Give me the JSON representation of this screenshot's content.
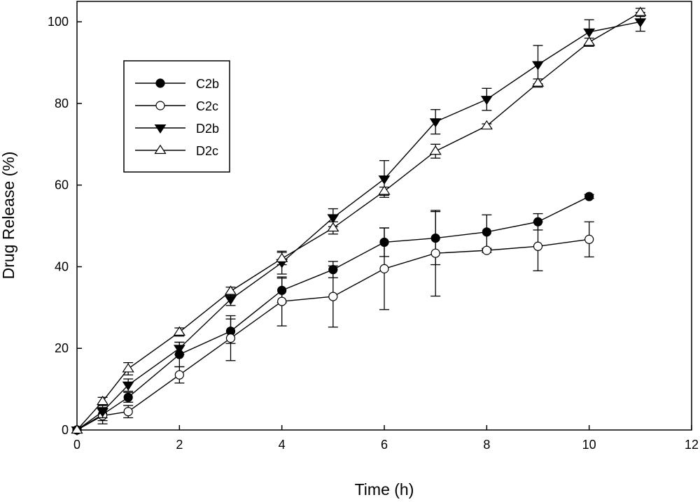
{
  "chart_data": {
    "type": "line",
    "xlabel": "Time (h)",
    "ylabel": "Drug Release (%)",
    "xlim": [
      0,
      12
    ],
    "ylim": [
      0,
      105
    ],
    "x_ticks": [
      0,
      2,
      4,
      6,
      8,
      10,
      12
    ],
    "y_ticks": [
      0,
      20,
      40,
      60,
      80,
      100
    ],
    "grid": false,
    "legend_position": "top-left",
    "series": [
      {
        "name": "C2b",
        "marker": "circle-filled",
        "color": "#000000",
        "x": [
          0,
          0.5,
          1,
          2,
          3,
          4,
          5,
          6,
          7,
          8,
          9,
          10
        ],
        "y": [
          0,
          3.8,
          8.0,
          18.5,
          24.2,
          34.2,
          39.3,
          46.0,
          47.0,
          48.5,
          51.0,
          57.2
        ],
        "err": [
          0,
          1.5,
          1.2,
          3.0,
          3.0,
          3.0,
          2.0,
          3.5,
          6.5,
          4.2,
          2.0,
          0.5
        ]
      },
      {
        "name": "C2c",
        "marker": "circle-open",
        "color": "#000000",
        "x": [
          0,
          0.5,
          1,
          2,
          3,
          4,
          5,
          6,
          7,
          8,
          9,
          10
        ],
        "y": [
          0,
          3.5,
          4.5,
          13.5,
          22.5,
          31.5,
          32.7,
          39.5,
          43.3,
          44.0,
          45.0,
          46.7
        ],
        "err": [
          0,
          2.0,
          1.5,
          2.0,
          5.5,
          6.0,
          7.5,
          10.0,
          10.5,
          0.5,
          6.0,
          4.3
        ]
      },
      {
        "name": "D2b",
        "marker": "triangle-down-filled",
        "color": "#000000",
        "x": [
          0,
          0.5,
          1,
          2,
          3,
          4,
          5,
          6,
          7,
          8,
          9,
          10,
          11
        ],
        "y": [
          0,
          4.5,
          11.0,
          20.0,
          32.0,
          41.0,
          52.0,
          61.5,
          75.5,
          81.0,
          89.5,
          97.5,
          100.0
        ],
        "err": [
          0,
          1.5,
          1.5,
          1.5,
          1.5,
          2.8,
          2.2,
          4.5,
          3.0,
          2.7,
          4.7,
          3.0,
          2.3
        ]
      },
      {
        "name": "D2c",
        "marker": "triangle-up-open",
        "color": "#000000",
        "x": [
          0,
          0.5,
          1,
          2,
          3,
          4,
          5,
          6,
          7,
          8,
          9,
          10,
          11
        ],
        "y": [
          0,
          7.0,
          15.0,
          24.0,
          34.0,
          42.0,
          49.5,
          58.5,
          68.3,
          74.5,
          85.0,
          95.0,
          102.3
        ],
        "err": [
          0,
          1.0,
          1.5,
          1.0,
          1.0,
          1.5,
          1.5,
          1.0,
          1.7,
          0.5,
          1.0,
          1.0,
          1.0
        ]
      }
    ]
  }
}
